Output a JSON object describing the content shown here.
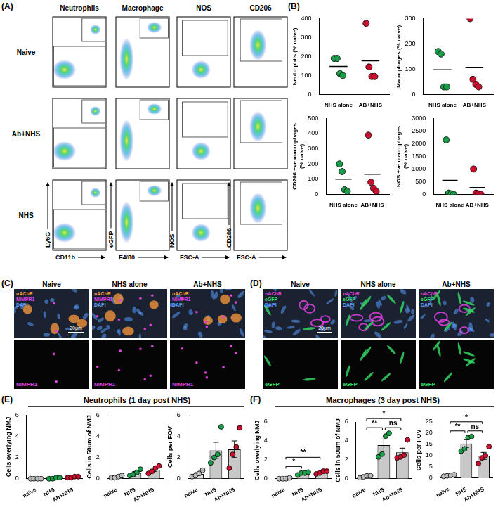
{
  "figure": {
    "A": {
      "label": "(A)",
      "rows": [
        "Naive",
        "Ab+NHS",
        "NHS"
      ],
      "columns": [
        {
          "title": "Neutrophils",
          "x_label": "CD11b",
          "y_label": "Ly6G"
        },
        {
          "title": "Macrophage",
          "x_label": "F4/80",
          "y_label": "eGFP"
        },
        {
          "title": "NOS",
          "x_label": "FSC-A",
          "y_label": "NOS"
        },
        {
          "title": "CD206",
          "x_label": "FSC-A",
          "y_label": "CD206"
        }
      ]
    },
    "B": {
      "label": "(B)"
    },
    "C": {
      "label": "(C)",
      "images": [
        {
          "title": "Naive"
        },
        {
          "title": "NHS alone"
        },
        {
          "title": "Ab+NHS"
        }
      ],
      "channels": [
        {
          "name": "nAChR",
          "color": "#ff9a3c"
        },
        {
          "name": "NIMPR1",
          "color": "#e040e0"
        },
        {
          "name": "DAPI",
          "color": "#5a9cff"
        }
      ],
      "lower_channel": {
        "name": "NIMPR1",
        "color": "#e040e0"
      },
      "scale_bar": "20μm"
    },
    "D": {
      "label": "(D)",
      "images": [
        {
          "title": "Naive"
        },
        {
          "title": "NHS alone"
        },
        {
          "title": "Ab+NHS"
        }
      ],
      "channels": [
        {
          "name": "nAChR",
          "color": "#e040e0"
        },
        {
          "name": "eGFP",
          "color": "#33dd66"
        },
        {
          "name": "DAPI",
          "color": "#5a9cff"
        }
      ],
      "lower_channel": {
        "name": "eGFP",
        "color": "#33dd66"
      },
      "scale_bar": "20μm"
    },
    "E": {
      "label": "(E)",
      "title": "Neutrophils (1 day post NHS)"
    },
    "F": {
      "label": "(F)",
      "title": "Macrophages (3 day post NHS)"
    }
  },
  "chart_data": [
    {
      "type": "scatter",
      "categories": [
        "NHS alone",
        "AB+NHS"
      ],
      "ylabel": "Neutrophils (% naive)",
      "ylim": [
        0,
        400
      ],
      "yticks": [
        0,
        100,
        200,
        300,
        400
      ],
      "colors": [
        "#1b9e4b",
        "#c8102e"
      ],
      "points": [
        [
          190,
          190,
          110,
          100
        ],
        [
          375,
          145,
          95,
          95
        ]
      ],
      "means": [
        147.5,
        177.5
      ]
    },
    {
      "type": "scatter",
      "categories": [
        "NHS alone",
        "AB+NHS"
      ],
      "ylabel": "Macrophages (% naive)",
      "ylim": [
        0,
        300
      ],
      "yticks": [
        0,
        100,
        200,
        300
      ],
      "colors": [
        "#1b9e4b",
        "#c8102e"
      ],
      "points": [
        [
          170,
          160,
          30,
          30
        ],
        [
          300,
          60,
          40,
          30
        ]
      ],
      "means": [
        97.5,
        107.5
      ]
    },
    {
      "type": "scatter",
      "categories": [
        "NHS alone",
        "AB+NHS"
      ],
      "ylabel": [
        "CD206 +ve macrophages",
        "(% naive)"
      ],
      "ylim": [
        0,
        500
      ],
      "yticks": [
        0,
        100,
        200,
        300,
        400,
        500
      ],
      "colors": [
        "#1b9e4b",
        "#c8102e"
      ],
      "points": [
        [
          200,
          150,
          30,
          20
        ],
        [
          390,
          80,
          40,
          20
        ]
      ],
      "means": [
        100,
        132.5
      ]
    },
    {
      "type": "scatter",
      "categories": [
        "NHS alone",
        "AB+NHS"
      ],
      "ylabel": [
        "NOS +ve macrophages",
        "(% naive)"
      ],
      "ylim": [
        0,
        3000
      ],
      "yticks": [
        0,
        500,
        1000,
        1500,
        2000,
        2500,
        3000
      ],
      "colors": [
        "#1b9e4b",
        "#c8102e"
      ],
      "points": [
        [
          2150,
          50,
          20,
          0
        ],
        [
          1000,
          50,
          20,
          0
        ]
      ],
      "means": [
        555,
        267.5
      ]
    },
    {
      "type": "bar",
      "categories": [
        "naive",
        "NHS",
        "Ab+NHS"
      ],
      "ylabel": "Cells overlying NMJ",
      "ylim": [
        0,
        6
      ],
      "yticks": [
        0,
        2,
        4,
        6
      ],
      "values": [
        0,
        0.05,
        0.15
      ],
      "errors": [
        0,
        0.03,
        0.03
      ],
      "colors": [
        "#e0e0e0",
        "#c8c8c8",
        "#c8c8c8"
      ],
      "point_colors": [
        "#bdbdbd",
        "#1b9e4b",
        "#c8102e"
      ],
      "points": [
        [
          0,
          0,
          0,
          0
        ],
        [
          0,
          0,
          0.1,
          0.1
        ],
        [
          0.1,
          0.1,
          0.2,
          0.2
        ]
      ]
    },
    {
      "type": "bar",
      "categories": [
        "naive",
        "NHS",
        "Ab+NHS"
      ],
      "ylabel": "Cells in 50um of NMJ",
      "ylim": [
        0,
        6
      ],
      "yticks": [
        0,
        2,
        4,
        6
      ],
      "values": [
        0.18,
        0.55,
        0.85
      ],
      "errors": [
        0.05,
        0.13,
        0.16
      ],
      "colors": [
        "#e0e0e0",
        "#c8c8c8",
        "#c8c8c8"
      ],
      "point_colors": [
        "#bdbdbd",
        "#1b9e4b",
        "#c8102e"
      ],
      "points": [
        [
          0.1,
          0.1,
          0.2,
          0.3
        ],
        [
          0.3,
          0.4,
          0.6,
          0.9
        ],
        [
          0.5,
          0.7,
          1.0,
          1.2
        ]
      ]
    },
    {
      "type": "bar",
      "categories": [
        "naive",
        "NHS",
        "Ab+NHS"
      ],
      "ylabel": "Cells per FOV",
      "ylim": [
        0,
        6
      ],
      "yticks": [
        0,
        2,
        4,
        6
      ],
      "values": [
        0.45,
        2.68,
        2.78
      ],
      "errors": [
        0.13,
        0.76,
        0.79
      ],
      "colors": [
        "#e0e0e0",
        "#c8c8c8",
        "#c8c8c8"
      ],
      "point_colors": [
        "#bdbdbd",
        "#1b9e4b",
        "#c8102e"
      ],
      "points": [
        [
          0.2,
          0.3,
          0.5,
          0.8
        ],
        [
          1.5,
          2.0,
          2.3,
          4.9
        ],
        [
          1.0,
          2.3,
          3.0,
          4.8
        ]
      ]
    },
    {
      "type": "bar",
      "categories": [
        "naive",
        "NHS",
        "Ab+NHS"
      ],
      "ylabel": "Cells overlying NMJ",
      "ylim": [
        0,
        6
      ],
      "yticks": [
        0,
        2,
        4,
        6
      ],
      "values": [
        0.03,
        0.58,
        0.68
      ],
      "errors": [
        0.03,
        0.06,
        0.08
      ],
      "colors": [
        "#e0e0e0",
        "#c8c8c8",
        "#c8c8c8"
      ],
      "point_colors": [
        "#bdbdbd",
        "#1b9e4b",
        "#c8102e"
      ],
      "points": [
        [
          0,
          0,
          0,
          0.1
        ],
        [
          0.4,
          0.6,
          0.6,
          0.7
        ],
        [
          0.5,
          0.6,
          0.8,
          0.8
        ]
      ],
      "significance": [
        {
          "from": "naive",
          "to": "NHS",
          "label": "*"
        },
        {
          "from": "naive",
          "to": "Ab+NHS",
          "label": "**"
        }
      ]
    },
    {
      "type": "bar",
      "categories": [
        "naive",
        "NHS",
        "Ab+NHS"
      ],
      "ylabel": "Cells in 50um of NMJ",
      "ylim": [
        0,
        6
      ],
      "yticks": [
        0,
        2,
        4,
        6
      ],
      "values": [
        0.23,
        3.55,
        2.78
      ],
      "errors": [
        0.05,
        0.64,
        0.45
      ],
      "colors": [
        "#e0e0e0",
        "#c8c8c8",
        "#c8c8c8"
      ],
      "point_colors": [
        "#bdbdbd",
        "#1b9e4b",
        "#c8102e"
      ],
      "points": [
        [
          0.1,
          0.2,
          0.3,
          0.3
        ],
        [
          2.3,
          2.6,
          4.5,
          4.8
        ],
        [
          2.2,
          2.3,
          2.5,
          4.1
        ]
      ],
      "significance": [
        {
          "from": "naive",
          "to": "NHS",
          "label": "**"
        },
        {
          "from": "NHS",
          "to": "Ab+NHS",
          "label": "ns"
        },
        {
          "from": "naive",
          "to": "Ab+NHS",
          "label": "*"
        }
      ]
    },
    {
      "type": "bar",
      "categories": [
        "naive",
        "NHS",
        "Ab+NHS"
      ],
      "ylabel": "Cells per FOV",
      "ylim": [
        0,
        25
      ],
      "yticks": [
        0,
        5,
        10,
        15,
        20,
        25
      ],
      "values": [
        1.13,
        15.38,
        9.88
      ],
      "errors": [
        0.15,
        1.7,
        1.56
      ],
      "colors": [
        "#e0e0e0",
        "#c8c8c8",
        "#c8c8c8"
      ],
      "point_colors": [
        "#bdbdbd",
        "#1b9e4b",
        "#c8102e"
      ],
      "points": [
        [
          0.8,
          1.0,
          1.2,
          1.5
        ],
        [
          12,
          13,
          18,
          18.5
        ],
        [
          6.5,
          9,
          10,
          14
        ]
      ],
      "significance": [
        {
          "from": "naive",
          "to": "NHS",
          "label": "**"
        },
        {
          "from": "NHS",
          "to": "Ab+NHS",
          "label": "ns"
        },
        {
          "from": "naive",
          "to": "Ab+NHS",
          "label": "*"
        }
      ]
    }
  ]
}
